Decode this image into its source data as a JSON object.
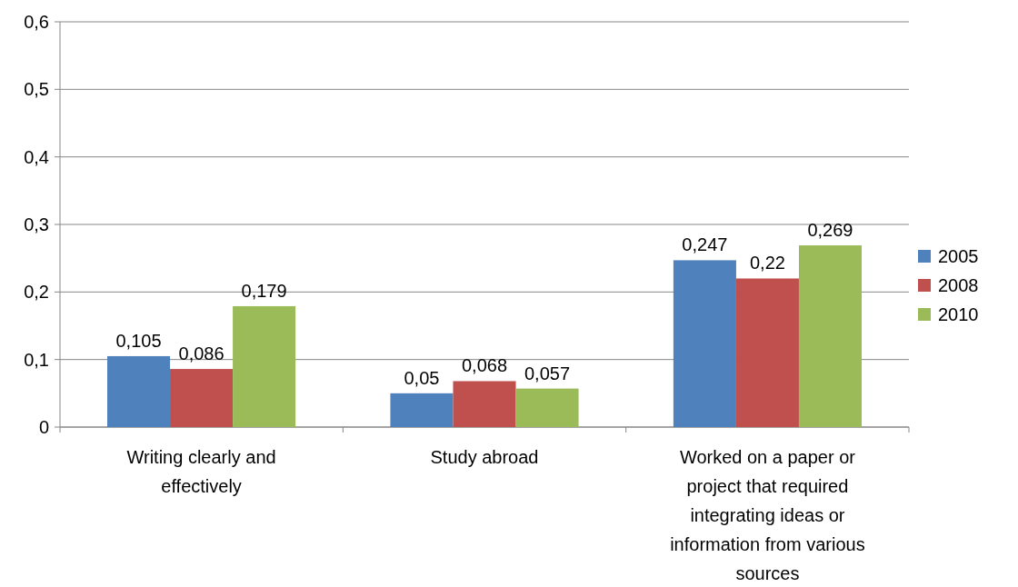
{
  "chart_data": {
    "type": "bar",
    "categories": [
      "Writing clearly and effectively",
      "Study abroad",
      "Worked on a paper or project that required integrating ideas or information from various sources"
    ],
    "series": [
      {
        "name": "2005",
        "color": "#4f81bd",
        "values": [
          0.105,
          0.05,
          0.247
        ],
        "value_labels": [
          "0,105",
          "0,05",
          "0,247"
        ]
      },
      {
        "name": "2008",
        "color": "#c0504d",
        "values": [
          0.086,
          0.068,
          0.22
        ],
        "value_labels": [
          "0,086",
          "0,068",
          "0,22"
        ]
      },
      {
        "name": "2010",
        "color": "#9bbb59",
        "values": [
          0.179,
          0.057,
          0.269
        ],
        "value_labels": [
          "0,179",
          "0,057",
          "0,269"
        ]
      }
    ],
    "ylim": [
      0,
      0.6
    ],
    "yticks": [
      {
        "value": 0,
        "label": "0"
      },
      {
        "value": 0.1,
        "label": "0,1"
      },
      {
        "value": 0.2,
        "label": "0,2"
      },
      {
        "value": 0.3,
        "label": "0,3"
      },
      {
        "value": 0.4,
        "label": "0,4"
      },
      {
        "value": 0.5,
        "label": "0,5"
      },
      {
        "value": 0.6,
        "label": "0,6"
      }
    ],
    "grid": "y",
    "legend": "right"
  }
}
